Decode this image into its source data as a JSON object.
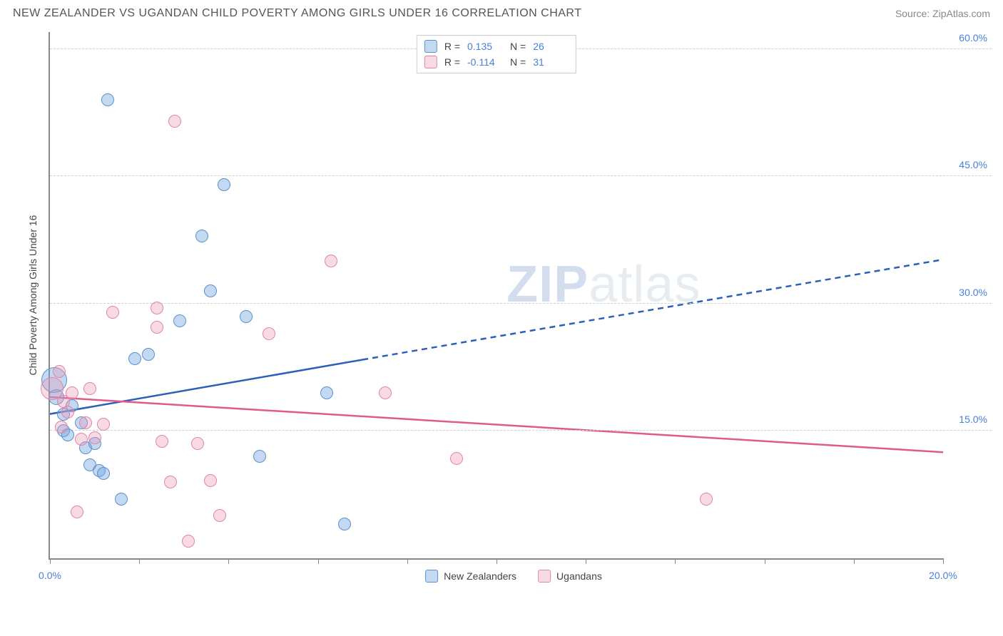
{
  "header": {
    "title": "NEW ZEALANDER VS UGANDAN CHILD POVERTY AMONG GIRLS UNDER 16 CORRELATION CHART",
    "source": "Source: ZipAtlas.com"
  },
  "watermark": {
    "zip": "ZIP",
    "rest": "atlas"
  },
  "chart": {
    "type": "scatter",
    "y_axis_label": "Child Poverty Among Girls Under 16",
    "xlim": [
      0,
      20
    ],
    "ylim": [
      0,
      62
    ],
    "x_ticks": [
      0,
      2,
      4,
      6,
      8,
      10,
      12,
      14,
      16,
      18,
      20
    ],
    "x_tick_labels": {
      "0": "0.0%",
      "20": "20.0%"
    },
    "y_gridlines": [
      15,
      30,
      45,
      60
    ],
    "y_tick_labels": {
      "15": "15.0%",
      "30": "30.0%",
      "45": "45.0%",
      "60": "60.0%"
    },
    "background_color": "#ffffff",
    "grid_color": "#d0d0d0",
    "axis_color": "#888888",
    "tick_label_color": "#4a7fd8",
    "axis_label_color": "#444444",
    "point_radius_default": 9,
    "series": [
      {
        "name": "New Zealanders",
        "fill_color": "rgba(120,170,225,0.45)",
        "stroke_color": "#5a8fd0",
        "css_class": "point-blue",
        "R": "0.135",
        "N": "26",
        "trend": {
          "x1": 0,
          "y1": 17,
          "x2_solid": 7,
          "y2_solid": 23.4,
          "x2": 20,
          "y2": 35.2,
          "color": "#2d5fb8",
          "width": 2.5
        },
        "points": [
          {
            "x": 0.1,
            "y": 21,
            "r": 18
          },
          {
            "x": 0.15,
            "y": 19,
            "r": 11
          },
          {
            "x": 0.3,
            "y": 15,
            "r": 9
          },
          {
            "x": 0.4,
            "y": 14.5,
            "r": 9
          },
          {
            "x": 0.5,
            "y": 18,
            "r": 9
          },
          {
            "x": 0.3,
            "y": 17,
            "r": 9
          },
          {
            "x": 0.7,
            "y": 16,
            "r": 9
          },
          {
            "x": 0.8,
            "y": 13,
            "r": 9
          },
          {
            "x": 0.9,
            "y": 11,
            "r": 9
          },
          {
            "x": 1.1,
            "y": 10.3,
            "r": 9
          },
          {
            "x": 1.0,
            "y": 13.5,
            "r": 9
          },
          {
            "x": 1.2,
            "y": 10,
            "r": 9
          },
          {
            "x": 1.3,
            "y": 54,
            "r": 9
          },
          {
            "x": 1.6,
            "y": 7,
            "r": 9
          },
          {
            "x": 1.9,
            "y": 23.5,
            "r": 9
          },
          {
            "x": 2.2,
            "y": 24,
            "r": 9
          },
          {
            "x": 2.9,
            "y": 28,
            "r": 9
          },
          {
            "x": 3.4,
            "y": 38,
            "r": 9
          },
          {
            "x": 3.6,
            "y": 31.5,
            "r": 9
          },
          {
            "x": 3.9,
            "y": 44,
            "r": 9
          },
          {
            "x": 4.4,
            "y": 28.5,
            "r": 9
          },
          {
            "x": 4.7,
            "y": 12,
            "r": 9
          },
          {
            "x": 6.2,
            "y": 19.5,
            "r": 9
          },
          {
            "x": 6.6,
            "y": 4,
            "r": 9
          }
        ]
      },
      {
        "name": "Ugandans",
        "fill_color": "rgba(235,150,180,0.35)",
        "stroke_color": "#e085a8",
        "css_class": "point-pink",
        "R": "-0.114",
        "N": "31",
        "trend": {
          "x1": 0,
          "y1": 19,
          "x2_solid": 20,
          "y2_solid": 12.5,
          "x2": 20,
          "y2": 12.5,
          "color": "#e05a8a",
          "width": 2.5
        },
        "points": [
          {
            "x": 0.05,
            "y": 20,
            "r": 16
          },
          {
            "x": 0.2,
            "y": 22,
            "r": 9
          },
          {
            "x": 0.25,
            "y": 15.5,
            "r": 9
          },
          {
            "x": 0.3,
            "y": 18.5,
            "r": 9
          },
          {
            "x": 0.4,
            "y": 17.2,
            "r": 9
          },
          {
            "x": 0.5,
            "y": 19.5,
            "r": 9
          },
          {
            "x": 0.6,
            "y": 5.5,
            "r": 9
          },
          {
            "x": 0.7,
            "y": 14,
            "r": 9
          },
          {
            "x": 0.9,
            "y": 20,
            "r": 9
          },
          {
            "x": 0.8,
            "y": 16,
            "r": 9
          },
          {
            "x": 1.0,
            "y": 14.2,
            "r": 9
          },
          {
            "x": 1.2,
            "y": 15.8,
            "r": 9
          },
          {
            "x": 1.4,
            "y": 29,
            "r": 9
          },
          {
            "x": 2.4,
            "y": 27.2,
            "r": 9
          },
          {
            "x": 2.4,
            "y": 29.5,
            "r": 9
          },
          {
            "x": 2.5,
            "y": 13.8,
            "r": 9
          },
          {
            "x": 2.7,
            "y": 9,
            "r": 9
          },
          {
            "x": 2.8,
            "y": 51.5,
            "r": 9
          },
          {
            "x": 3.1,
            "y": 2,
            "r": 9
          },
          {
            "x": 3.3,
            "y": 13.5,
            "r": 9
          },
          {
            "x": 3.6,
            "y": 9.2,
            "r": 9
          },
          {
            "x": 3.8,
            "y": 5,
            "r": 9
          },
          {
            "x": 4.9,
            "y": 26.5,
            "r": 9
          },
          {
            "x": 6.3,
            "y": 35,
            "r": 9
          },
          {
            "x": 7.5,
            "y": 19.5,
            "r": 9
          },
          {
            "x": 9.1,
            "y": 11.8,
            "r": 9
          },
          {
            "x": 14.7,
            "y": 7,
            "r": 9
          }
        ]
      }
    ],
    "legend_top": {
      "R_label": "R = ",
      "N_label": "N = "
    },
    "legend_bottom": [
      {
        "swatch": "sw-blue",
        "label": "New Zealanders"
      },
      {
        "swatch": "sw-pink",
        "label": "Ugandans"
      }
    ]
  }
}
